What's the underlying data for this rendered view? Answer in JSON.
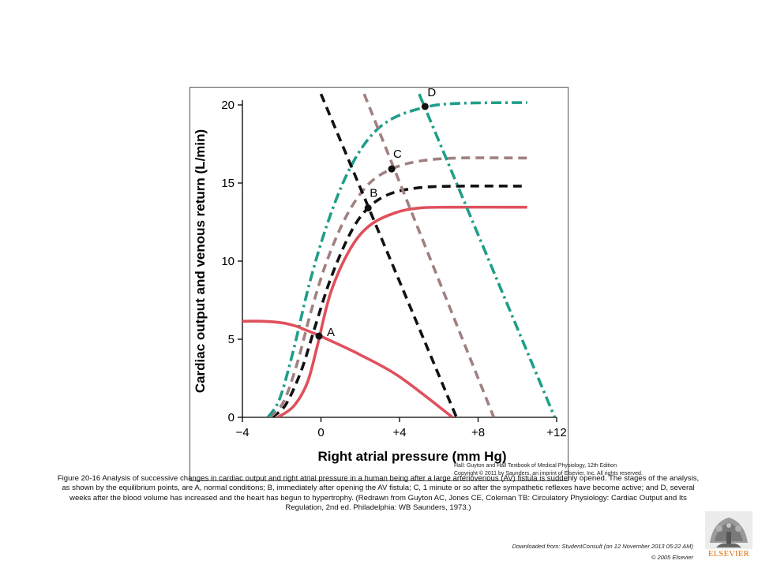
{
  "chart_data": {
    "type": "line",
    "xlabel": "Right atrial pressure (mm Hg)",
    "ylabel": "Cardiac output and venous return (L/min)",
    "xlim": [
      -4,
      12
    ],
    "ylim": [
      0,
      20
    ],
    "xticks": [
      -4,
      0,
      4,
      8,
      12
    ],
    "xtick_labels": [
      "−4",
      "0",
      "+4",
      "+8",
      "+12"
    ],
    "yticks": [
      0,
      5,
      10,
      15,
      20
    ],
    "ytick_labels": [
      "0",
      "5",
      "10",
      "15",
      "20"
    ],
    "grid": false,
    "series": [
      {
        "style": "solid",
        "color": "#e0505c",
        "x": [
          -2.2,
          -1.4,
          -0.7,
          -0.2,
          0.5,
          1.5,
          2.5,
          3.8,
          5.0,
          6.5,
          10.5
        ],
        "y": [
          0,
          0.7,
          2.2,
          4.5,
          8.0,
          10.8,
          12.3,
          13.1,
          13.4,
          13.45,
          13.45
        ]
      },
      {
        "style": "dashed",
        "color": "#111111",
        "x": [
          -2.5,
          -1.8,
          -1.0,
          -0.3,
          0.5,
          1.5,
          2.4,
          3.5,
          5.0,
          7.0,
          10.5
        ],
        "y": [
          0,
          0.8,
          3.0,
          5.8,
          8.9,
          11.8,
          13.4,
          14.3,
          14.7,
          14.8,
          14.8
        ]
      },
      {
        "style": "dashed",
        "color": "#a08080",
        "x": [
          -2.6,
          -1.9,
          -1.2,
          -0.5,
          0.3,
          1.3,
          2.4,
          3.6,
          5.0,
          7.0,
          10.5
        ],
        "y": [
          0,
          1.0,
          3.5,
          6.8,
          10.0,
          12.9,
          14.9,
          15.9,
          16.4,
          16.6,
          16.6
        ]
      },
      {
        "style": "dashdot",
        "color": "#1f9e89",
        "x": [
          -2.7,
          -2.1,
          -1.4,
          -0.6,
          0.3,
          1.3,
          2.4,
          3.6,
          5.3,
          7.0,
          10.5
        ],
        "y": [
          0,
          1.2,
          4.3,
          8.5,
          12.3,
          15.5,
          17.8,
          19.1,
          19.85,
          20.1,
          20.15
        ]
      },
      {
        "style": "solid",
        "color": "#e0505c",
        "x": [
          -4,
          -3,
          -2,
          -1.3,
          -0.8,
          -0.3,
          0.5,
          2.0,
          4.0,
          6.7
        ],
        "y": [
          6.15,
          6.15,
          6.05,
          5.85,
          5.6,
          5.35,
          4.9,
          4.0,
          2.6,
          0
        ]
      },
      {
        "style": "dashed",
        "color": "#111111",
        "x": [
          0,
          6.9
        ],
        "y": [
          20.7,
          0
        ]
      },
      {
        "style": "dashed",
        "color": "#a08080",
        "x": [
          2.2,
          8.8
        ],
        "y": [
          20.7,
          0
        ]
      },
      {
        "style": "dashdot",
        "color": "#1f9e89",
        "x": [
          5.0,
          11.9
        ],
        "y": [
          20.7,
          0
        ]
      }
    ],
    "points": [
      {
        "label": "A",
        "x": -0.1,
        "y": 5.2
      },
      {
        "label": "B",
        "x": 2.4,
        "y": 13.4
      },
      {
        "label": "C",
        "x": 3.6,
        "y": 15.9
      },
      {
        "label": "D",
        "x": 5.3,
        "y": 19.9
      }
    ]
  },
  "credit": {
    "book": "Hall: Guyton and Hall Textbook of Medical Physiology, 12th Edition",
    "copyright": "Copyright © 2011 by Saunders, an imprint of Elsevier, Inc. All rights reserved."
  },
  "caption": "Figure 20-16 Analysis of successive changes in cardiac output and right atrial pressure in a human being after a large arteriovenous (AV) fistula is suddenly opened. The stages of the analysis, as shown by the equilibrium points, are A, normal conditions; B, immediately after opening the AV fistula; C, 1 minute or so after the sympathetic reflexes have become active; and D, several weeks after the blood volume has increased and the heart has begun to hypertrophy. (Redrawn from Guyton AC, Jones CE, Coleman TB: Circulatory Physiology: Cardiac Output and Its Regulation, 2nd ed. Philadelphia: WB Saunders, 1973.)",
  "footer": {
    "downloaded": "Downloaded from: StudentConsult (on 12 November 2013 05:22 AM)",
    "copyright": "© 2005 Elsevier",
    "publisher": "ELSEVIER",
    "publisher_color": "#e07000"
  }
}
